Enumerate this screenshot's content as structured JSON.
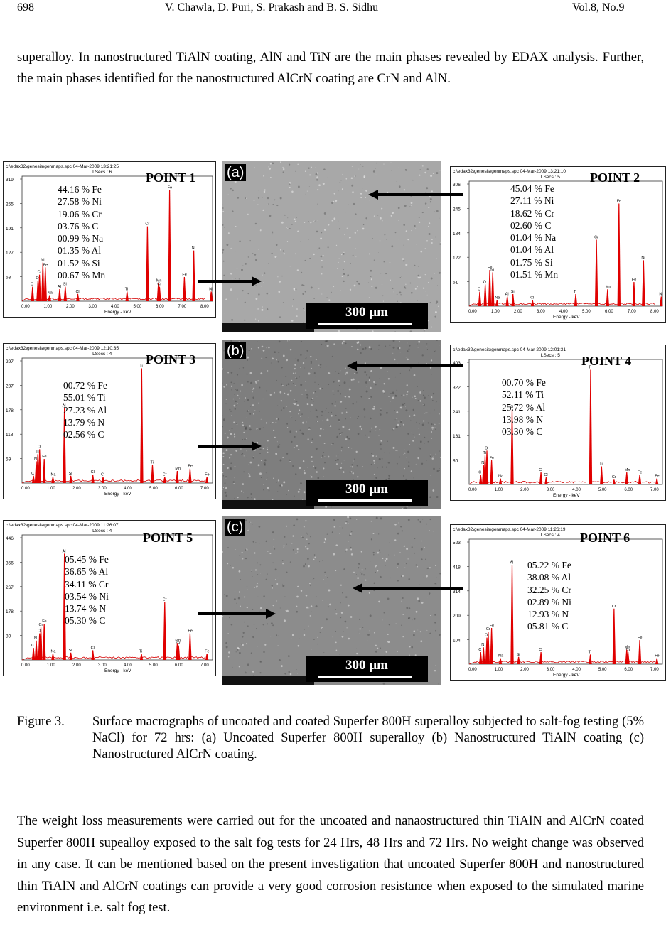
{
  "header": {
    "page_number": "698",
    "authors": "V. Chawla, D. Puri, S. Prakash and B. S. Sidhu",
    "volume": "Vol.8, No.9"
  },
  "intro_paragraph": "superalloy. In nanostructured TiAlN coating, AlN and TiN are the main phases revealed by EDAX analysis. Further, the main phases identified for the nanostructured AlCrN coating are CrN and AlN.",
  "sem_images": [
    {
      "label": "(a)",
      "scale": "300 µm",
      "tone": "#a8a8a8"
    },
    {
      "label": "(b)",
      "scale": "300 µm",
      "tone": "#7e7e7e"
    },
    {
      "label": "(c)",
      "scale": "300 µm",
      "tone": "#8c8c8c"
    }
  ],
  "spectra": [
    {
      "point": "POINT 1",
      "file": "c:\\edax32\\genesis\\genmaps.spc  04-Mar-2009 13:21:25",
      "lsecs": "LSecs : 6",
      "yticks": [
        "319",
        "255",
        "191",
        "127",
        "63"
      ],
      "xticks": [
        "0.00",
        "1.00",
        "2.00",
        "3.00",
        "4.00",
        "5.00",
        "6.00",
        "7.00",
        "8.00"
      ],
      "xlabel": "Energy - keV",
      "composition": [
        "44.16 % Fe",
        "27.58 % Ni",
        "19.06 % Cr",
        "03.76 % C",
        "00.99 % Na",
        "01.35 % Al",
        "01.52 % Si",
        "00.67 % Mn"
      ]
    },
    {
      "point": "POINT 2",
      "file": "c:\\edax32\\genesis\\genmaps.spc  04-Mar-2009 13:21:10",
      "lsecs": "LSecs : 5",
      "yticks": [
        "306",
        "245",
        "184",
        "122",
        "61"
      ],
      "xticks": [
        "0.00",
        "1.00",
        "2.00",
        "3.00",
        "4.00",
        "5.00",
        "6.00",
        "7.00",
        "8.00"
      ],
      "xlabel": "Energy - keV",
      "composition": [
        "45.04 % Fe",
        "27.11 % Ni",
        "18.62 % Cr",
        "02.60 % C",
        "01.04 % Na",
        "01.04 % Al",
        "01.75 % Si",
        "01.51 % Mn"
      ]
    },
    {
      "point": "POINT 3",
      "file": "c:\\edax32\\genesis\\genmaps.spc  04-Mar-2009 12:10:35",
      "lsecs": "LSecs : 4",
      "yticks": [
        "297",
        "237",
        "178",
        "118",
        "59"
      ],
      "xticks": [
        "0.00",
        "1.00",
        "2.00",
        "3.00",
        "4.00",
        "5.00",
        "6.00",
        "7.00"
      ],
      "xlabel": "Energy - keV",
      "composition": [
        "00.72 % Fe",
        "55.01 % Ti",
        "27.23 % Al",
        "13.79 % N",
        "02.56 % C"
      ]
    },
    {
      "point": "POINT 4",
      "file": "c:\\edax32\\genesis\\genmaps.spc  04-Mar-2009 12:01:31",
      "lsecs": "LSecs : 5",
      "yticks": [
        "403",
        "322",
        "241",
        "161",
        "80"
      ],
      "xticks": [
        "0.00",
        "1.00",
        "2.00",
        "3.00",
        "4.00",
        "5.00",
        "6.00",
        "7.00"
      ],
      "xlabel": "Energy - keV",
      "composition": [
        "00.70 % Fe",
        "52.11 % Ti",
        "25.72 % Al",
        "13.98 % N",
        "03.30 % C"
      ]
    },
    {
      "point": "POINT 5",
      "file": "c:\\edax32\\genesis\\genmaps.spc  04-Mar-2009 11:26:07",
      "lsecs": "LSecs : 4",
      "yticks": [
        "446",
        "356",
        "267",
        "178",
        "89"
      ],
      "xticks": [
        "0.00",
        "1.00",
        "2.00",
        "3.00",
        "4.00",
        "5.00",
        "6.00",
        "7.00"
      ],
      "xlabel": "Energy - keV",
      "composition": [
        "05.45 % Fe",
        "36.65 % Al",
        "34.11 % Cr",
        "03.54 % Ni",
        "13.74 % N",
        "05.30 % C"
      ]
    },
    {
      "point": "POINT 6",
      "file": "c:\\edax32\\genesis\\genmaps.spc  04-Mar-2009 11:26:19",
      "lsecs": "LSecs : 4",
      "yticks": [
        "523",
        "418",
        "314",
        "209",
        "104"
      ],
      "xticks": [
        "0.00",
        "1.00",
        "2.00",
        "3.00",
        "4.00",
        "5.00",
        "6.00",
        "7.00"
      ],
      "xlabel": "Energy - keV",
      "composition": [
        "05.22 % Fe",
        "38.08 % Al",
        "32.25 % Cr",
        "02.89 % Ni",
        "12.93 % N",
        "05.81 % C"
      ]
    }
  ],
  "caption": {
    "figure": "Figure 3.",
    "text": "Surface macrographs of uncoated and coated Superfer 800H superalloy subjected to salt-fog testing (5% NaCl) for 72 hrs: (a) Uncoated Superfer 800H superalloy (b) Nanostructured TiAlN coating (c) Nanostructured AlCrN coating."
  },
  "closing_paragraph": "The weight loss measurements were carried out for the uncoated and nanaostructured thin TiAlN and AlCrN coated Superfer 800H supealloy exposed to the salt fog tests for 24 Hrs, 48 Hrs and 72 Hrs. No weight change was observed in any case. It can be mentioned based on the present investigation that uncoated Superfer 800H and nanostructured thin TiAlN and AlCrN coatings can provide a very good corrosion resistance when exposed to the simulated marine environment i.e. salt fog test."
}
